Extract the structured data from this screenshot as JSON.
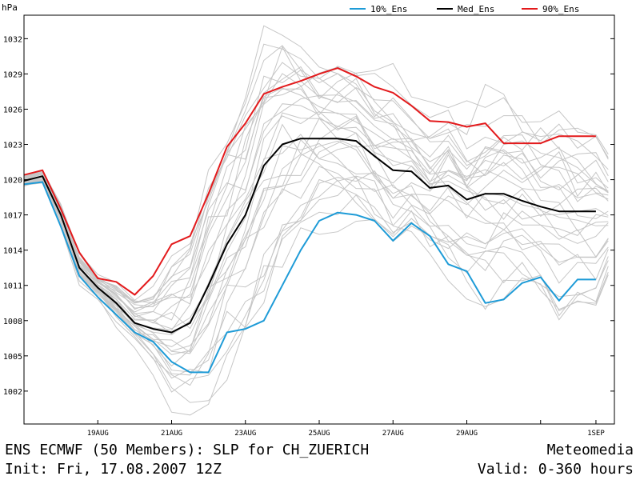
{
  "unit_label": "hPa",
  "legend": [
    {
      "label": "10%_Ens",
      "color": "#1e9bd7"
    },
    {
      "label": "Med_Ens",
      "color": "#000000"
    },
    {
      "label": "90%_Ens",
      "color": "#e31a1c"
    }
  ],
  "footer": {
    "title": "ENS ECMWF (50 Members): SLP for CH_ZUERICH",
    "init": "Init: Fri, 17.08.2007 12Z",
    "brand": "Meteomedia",
    "valid": "Valid: 0-360 hours"
  },
  "chart_data": {
    "type": "line",
    "ylabel": "hPa",
    "ylim": [
      999.2,
      1034.0
    ],
    "yticks": [
      1002,
      1005,
      1008,
      1011,
      1014,
      1017,
      1020,
      1023,
      1026,
      1029,
      1032
    ],
    "ytick_labels": [
      "1002",
      "1005",
      "1008",
      "1011",
      "1014",
      "1017",
      "1020",
      "1023",
      "1026",
      "1029",
      "1032"
    ],
    "xlim": [
      -12,
      372
    ],
    "xticks": [
      36,
      84,
      132,
      180,
      228,
      276,
      324,
      360
    ],
    "xtick_labels": [
      "19AUG",
      "21AUG",
      "23AUG",
      "25AUG",
      "27AUG",
      "29AUG",
      "",
      "1SEP"
    ],
    "grid": false,
    "legend_position": "top",
    "series": [
      {
        "name": "10%_Ens",
        "color": "#1e9bd7",
        "x": [
          -12,
          0,
          12,
          24,
          36,
          48,
          60,
          72,
          84,
          96,
          108,
          120,
          132,
          144,
          156,
          168,
          180,
          192,
          204,
          216,
          228,
          240,
          252,
          264,
          276,
          288,
          300,
          312,
          324,
          336,
          348,
          360
        ],
        "values": [
          1019.6,
          1019.8,
          1016.0,
          1011.8,
          1010.0,
          1008.5,
          1007.0,
          1006.2,
          1004.5,
          1003.6,
          1003.6,
          1007.0,
          1007.3,
          1008.0,
          1011.0,
          1014.0,
          1016.5,
          1017.2,
          1017.0,
          1016.5,
          1014.8,
          1016.3,
          1015.2,
          1012.8,
          1012.2,
          1009.5,
          1009.8,
          1011.2,
          1011.7,
          1009.7,
          1011.5,
          1011.5
        ]
      },
      {
        "name": "Med_Ens",
        "color": "#000000",
        "x": [
          -12,
          0,
          12,
          24,
          36,
          48,
          60,
          72,
          84,
          96,
          108,
          120,
          132,
          144,
          156,
          168,
          180,
          192,
          204,
          216,
          228,
          240,
          252,
          264,
          276,
          288,
          300,
          312,
          324,
          336,
          348,
          360
        ],
        "values": [
          1019.9,
          1020.3,
          1017.0,
          1012.5,
          1010.8,
          1009.5,
          1007.8,
          1007.3,
          1007.0,
          1007.8,
          1011.0,
          1014.5,
          1017.0,
          1021.2,
          1023.0,
          1023.5,
          1023.5,
          1023.5,
          1023.3,
          1022.0,
          1020.8,
          1020.7,
          1019.3,
          1019.5,
          1018.3,
          1018.8,
          1018.8,
          1018.2,
          1017.7,
          1017.3,
          1017.3,
          1017.3
        ]
      },
      {
        "name": "90%_Ens",
        "color": "#e31a1c",
        "x": [
          -12,
          0,
          12,
          24,
          36,
          48,
          60,
          72,
          84,
          96,
          108,
          120,
          132,
          144,
          156,
          168,
          180,
          192,
          204,
          216,
          228,
          240,
          252,
          264,
          276,
          288,
          300,
          312,
          324,
          336,
          348,
          360
        ],
        "values": [
          1020.4,
          1020.8,
          1017.5,
          1013.8,
          1011.6,
          1011.3,
          1010.2,
          1011.8,
          1014.5,
          1015.2,
          1018.8,
          1022.8,
          1024.8,
          1027.3,
          1027.9,
          1028.4,
          1029.0,
          1029.5,
          1028.8,
          1027.9,
          1027.4,
          1026.3,
          1025.0,
          1024.9,
          1024.5,
          1024.8,
          1023.1,
          1023.1,
          1023.1,
          1023.7,
          1023.7,
          1023.7
        ]
      }
    ]
  }
}
